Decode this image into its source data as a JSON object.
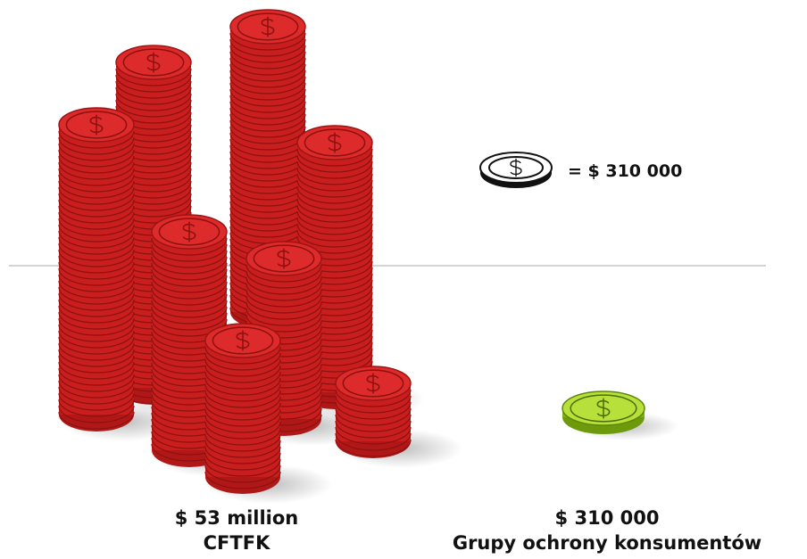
{
  "legend": {
    "label": "= $ 310 000"
  },
  "items": [
    {
      "amount": "$ 53 million",
      "name": "CFTFK"
    },
    {
      "amount": "$ 310 000",
      "name": "Grupy ochrony konsumentów"
    }
  ]
}
